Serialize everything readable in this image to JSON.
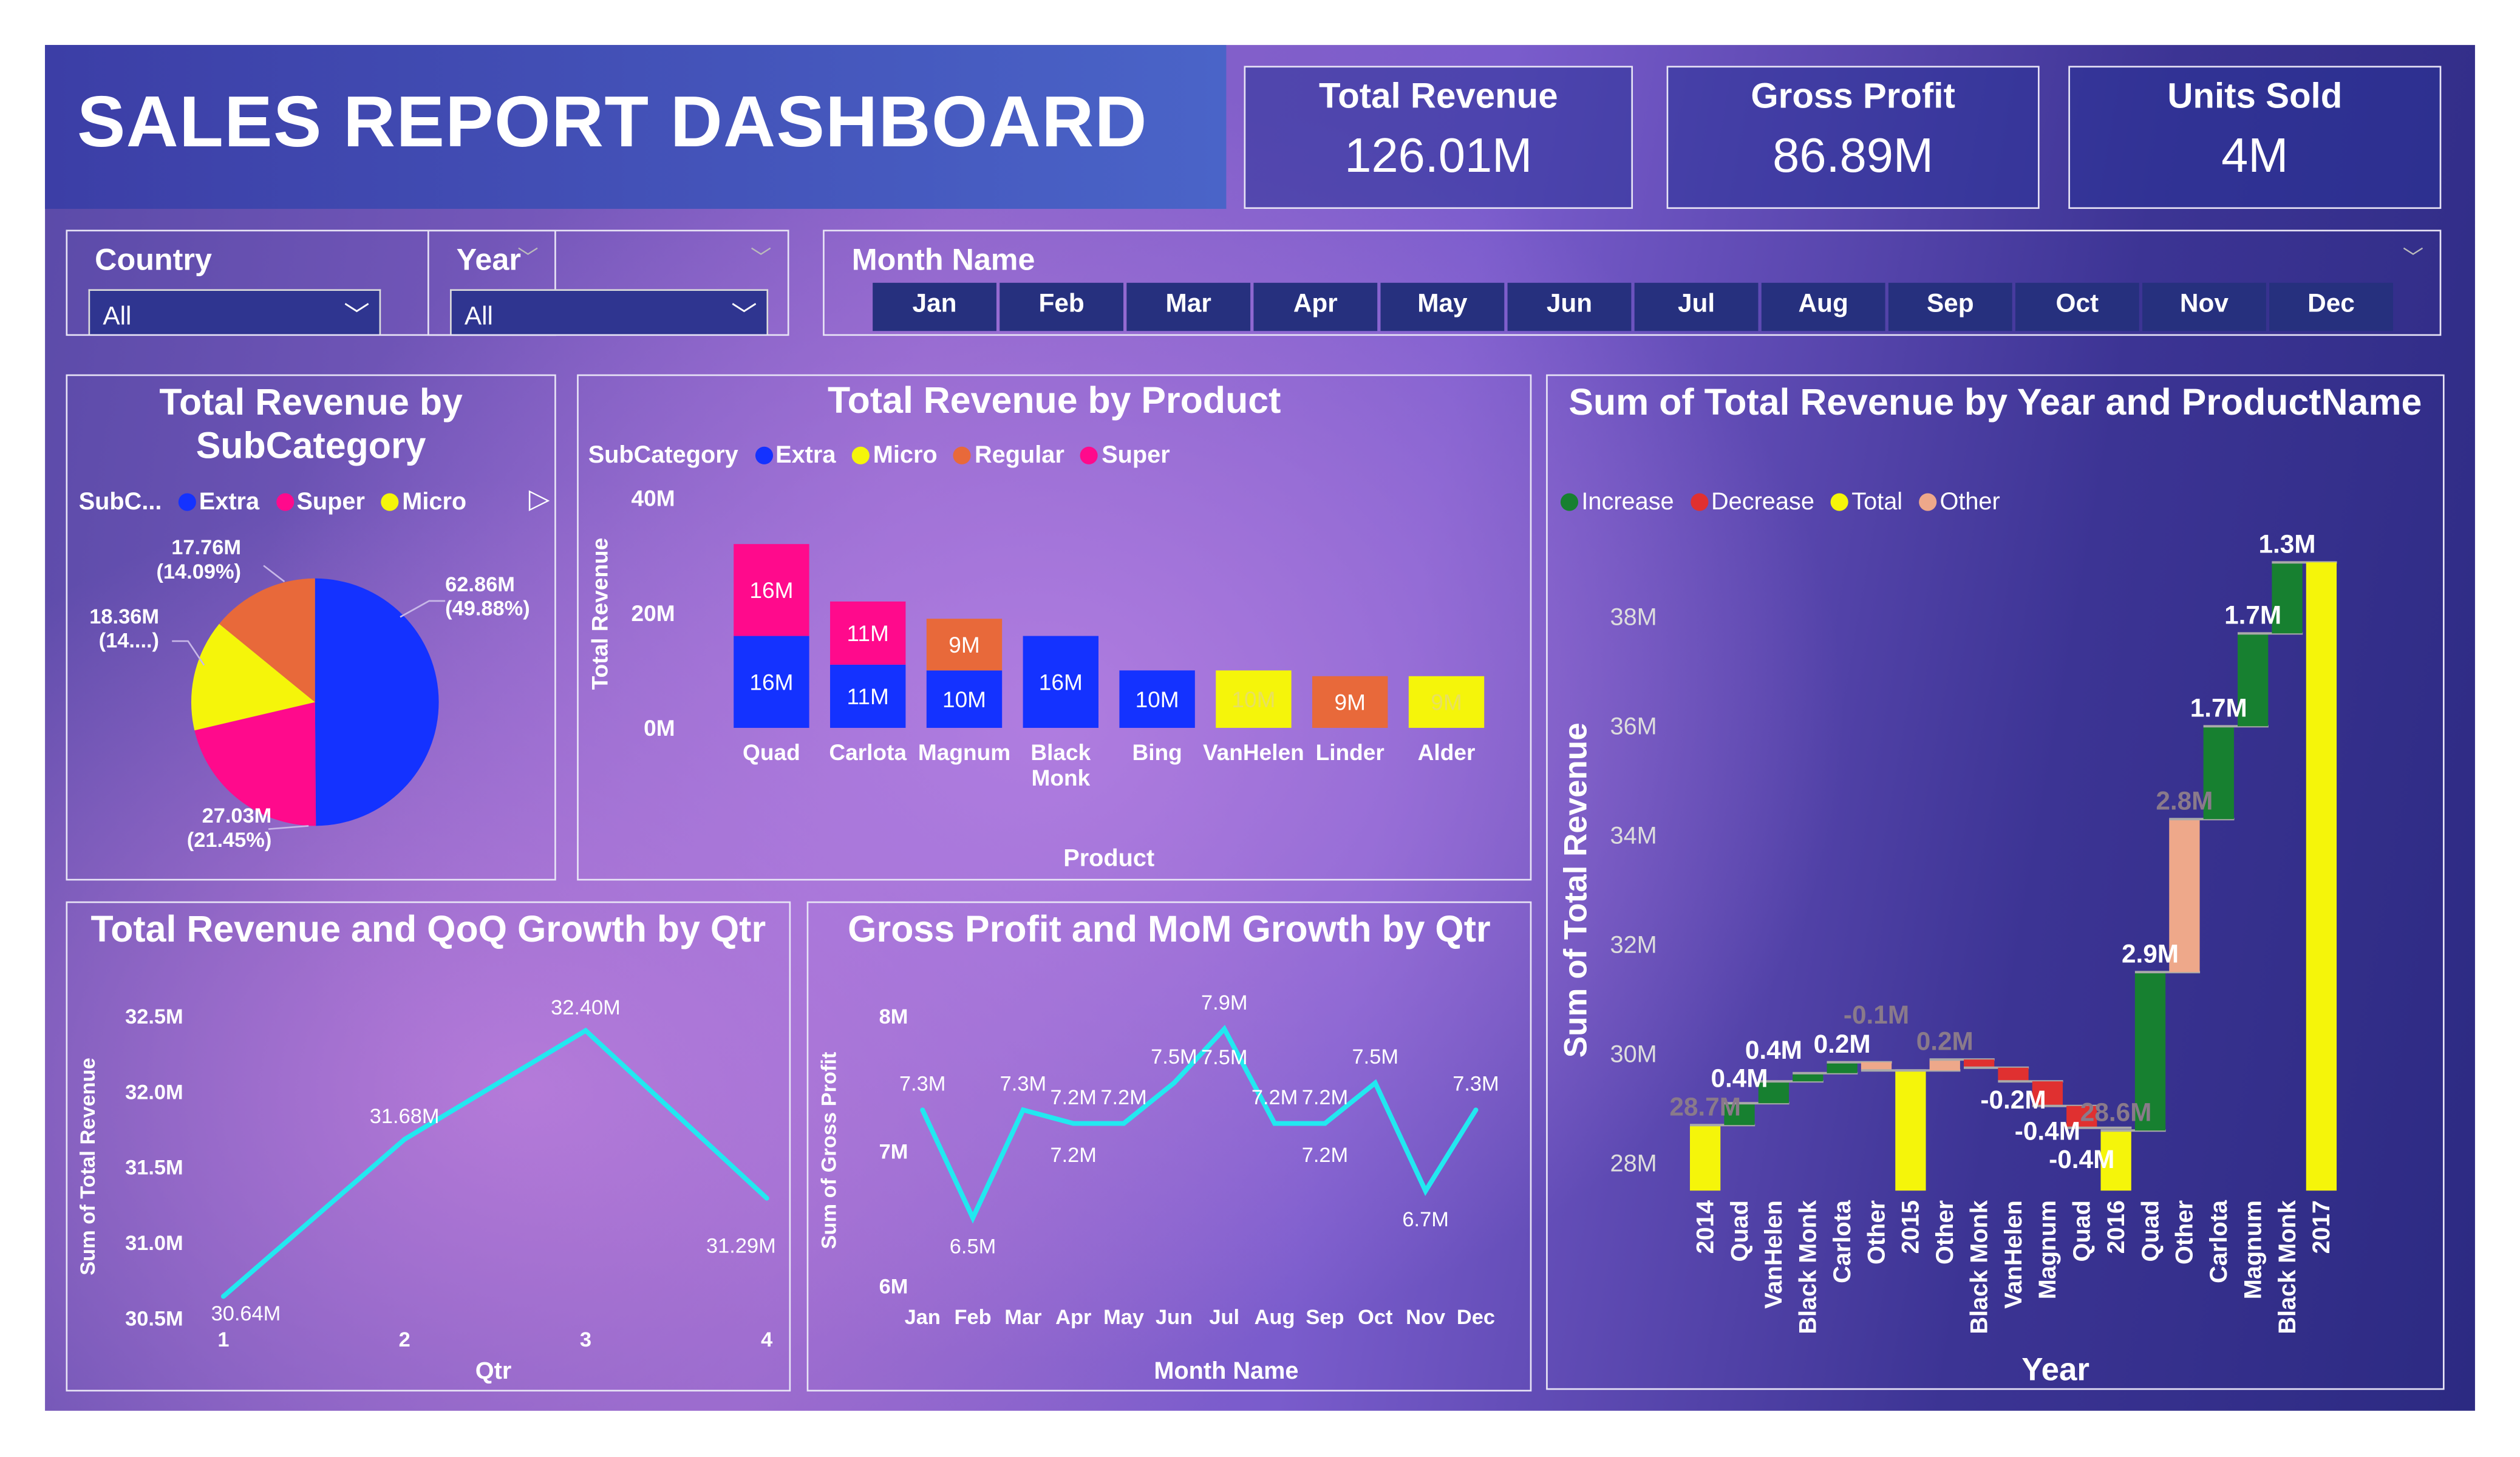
{
  "header": {
    "title": "SALES REPORT DASHBOARD"
  },
  "kpis": [
    {
      "label": "Total Revenue",
      "value": "126.01M"
    },
    {
      "label": "Gross Profit",
      "value": "86.89M"
    },
    {
      "label": "Units Sold",
      "value": "4M"
    }
  ],
  "slicers": {
    "country": {
      "label": "Country",
      "value": "All"
    },
    "year": {
      "label": "Year",
      "value": "All"
    },
    "month": {
      "label": "Month Name",
      "options": [
        "Jan",
        "Feb",
        "Mar",
        "Apr",
        "May",
        "Jun",
        "Jul",
        "Aug",
        "Sep",
        "Oct",
        "Nov",
        "Dec"
      ]
    }
  },
  "colors": {
    "extra": "#1432ff",
    "super": "#ff0a8c",
    "micro": "#f5f50a",
    "regular": "#e8693a",
    "increase": "#178030",
    "decrease": "#e03030",
    "total": "#f5f50a",
    "other": "#eea88a",
    "line": "#22e8f0"
  },
  "chart_data": [
    {
      "type": "pie",
      "title": "Total Revenue by SubCategory",
      "legend_title": "SubC...",
      "legend": [
        "Extra",
        "Super",
        "Micro"
      ],
      "slices": [
        {
          "name": "Extra",
          "value": 62.86,
          "label": "62.86M",
          "pct": "(49.88%)"
        },
        {
          "name": "Super",
          "value": 27.03,
          "label": "27.03M",
          "pct": "(21.45%)"
        },
        {
          "name": "Micro",
          "value": 18.36,
          "label": "18.36M",
          "pct": "(14....)"
        },
        {
          "name": "Regular",
          "value": 17.76,
          "label": "17.76M",
          "pct": "(14.09%)"
        }
      ]
    },
    {
      "type": "bar",
      "stacked": true,
      "title": "Total Revenue by Product",
      "legend_title": "SubCategory",
      "legend": [
        "Extra",
        "Micro",
        "Regular",
        "Super"
      ],
      "xlabel": "Product",
      "ylabel": "Total Revenue",
      "yticks": [
        "0M",
        "20M",
        "40M"
      ],
      "ylim": [
        0,
        40
      ],
      "categories": [
        "Quad",
        "Carlota",
        "Magnum",
        "Black Monk",
        "Bing",
        "VanHelen",
        "Linder",
        "Alder"
      ],
      "series": [
        {
          "name": "Extra",
          "values": [
            16,
            11,
            10,
            16,
            10,
            0,
            0,
            0
          ]
        },
        {
          "name": "Micro",
          "values": [
            0,
            0,
            0,
            0,
            0,
            10,
            0,
            9
          ]
        },
        {
          "name": "Regular",
          "values": [
            0,
            0,
            9,
            0,
            0,
            0,
            9,
            0
          ]
        },
        {
          "name": "Super",
          "values": [
            16,
            11,
            0,
            0,
            0,
            0,
            0,
            0
          ]
        }
      ]
    },
    {
      "type": "waterfall",
      "title": "Sum of Total Revenue by Year and ProductName",
      "legend": [
        "Increase",
        "Decrease",
        "Total",
        "Other"
      ],
      "xlabel": "Year",
      "ylabel": "Sum of Total Revenue",
      "yticks": [
        "28M",
        "30M",
        "32M",
        "34M",
        "36M",
        "38M"
      ],
      "ylim": [
        27.5,
        39.5
      ],
      "bars": [
        {
          "name": "2014",
          "kind": "total",
          "value": 28.7,
          "label": "28.7M"
        },
        {
          "name": "Quad",
          "kind": "increase",
          "value": 0.4,
          "label": "0.4M"
        },
        {
          "name": "VanHelen",
          "kind": "increase",
          "value": 0.4,
          "label": "0.4M"
        },
        {
          "name": "Black Monk",
          "kind": "increase",
          "value": 0.15,
          "label": ""
        },
        {
          "name": "Carlota",
          "kind": "increase",
          "value": 0.2,
          "label": "0.2M"
        },
        {
          "name": "Other",
          "kind": "other",
          "value": -0.15,
          "label": "-0.1M"
        },
        {
          "name": "2015",
          "kind": "total",
          "value": 29.7,
          "label": ""
        },
        {
          "name": "Other",
          "kind": "other",
          "value": 0.2,
          "label": "0.2M"
        },
        {
          "name": "Black Monk",
          "kind": "decrease",
          "value": -0.15,
          "label": ""
        },
        {
          "name": "VanHelen",
          "kind": "decrease",
          "value": -0.25,
          "label": "-0.2M"
        },
        {
          "name": "Magnum",
          "kind": "decrease",
          "value": -0.45,
          "label": "-0.4M"
        },
        {
          "name": "Quad",
          "kind": "decrease",
          "value": -0.4,
          "label": "-0.4M"
        },
        {
          "name": "2016",
          "kind": "total",
          "value": 28.6,
          "label": "28.6M"
        },
        {
          "name": "Quad",
          "kind": "increase",
          "value": 2.9,
          "label": "2.9M"
        },
        {
          "name": "Other",
          "kind": "other",
          "value": 2.8,
          "label": "2.8M"
        },
        {
          "name": "Carlota",
          "kind": "increase",
          "value": 1.7,
          "label": "1.7M"
        },
        {
          "name": "Magnum",
          "kind": "increase",
          "value": 1.7,
          "label": "1.7M"
        },
        {
          "name": "Black Monk",
          "kind": "increase",
          "value": 1.3,
          "label": "1.3M"
        },
        {
          "name": "2017",
          "kind": "total",
          "value": 39.0,
          "label": ""
        }
      ]
    },
    {
      "type": "line",
      "title": "Total Revenue and QoQ Growth by Qtr",
      "xlabel": "Qtr",
      "ylabel": "Sum of Total Revenue",
      "yticks": [
        "30.5M",
        "31.0M",
        "31.5M",
        "32.0M",
        "32.5M"
      ],
      "ylim": [
        30.5,
        32.5
      ],
      "categories": [
        "1",
        "2",
        "3",
        "4"
      ],
      "values": [
        30.64,
        31.68,
        32.4,
        31.29
      ],
      "labels": [
        "30.64M",
        "31.68M",
        "32.40M",
        "31.29M"
      ]
    },
    {
      "type": "line",
      "title": "Gross Profit and MoM Growth by Qtr",
      "xlabel": "Month Name",
      "ylabel": "Sum of Gross Profit",
      "yticks": [
        "6M",
        "7M",
        "8M"
      ],
      "ylim": [
        6,
        8
      ],
      "categories": [
        "Jan",
        "Feb",
        "Mar",
        "Apr",
        "May",
        "Jun",
        "Jul",
        "Aug",
        "Sep",
        "Oct",
        "Nov",
        "Dec"
      ],
      "values": [
        7.3,
        6.5,
        7.3,
        7.2,
        7.2,
        7.5,
        7.9,
        7.2,
        7.2,
        7.5,
        6.7,
        7.3
      ],
      "labels": [
        "7.3M",
        "6.5M",
        "7.3M",
        "7.2M",
        "7.2M",
        "7.5M",
        "7.9M",
        "7.2M",
        "7.2M",
        "7.5M",
        "6.7M",
        "7.3M"
      ],
      "extra_labels": [
        "7.2M",
        "7.5M",
        "7.2M"
      ]
    }
  ]
}
